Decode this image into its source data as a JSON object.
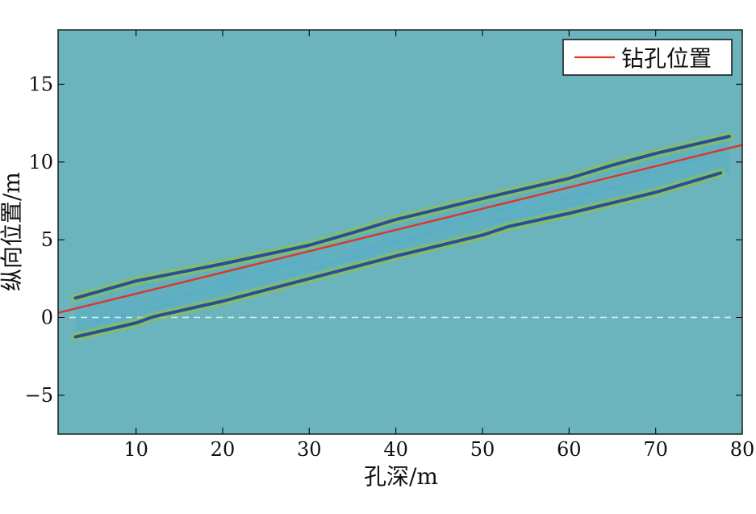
{
  "chart_data": {
    "type": "line",
    "title": "",
    "xlabel": "孔深/m",
    "ylabel": "纵向位置/m",
    "xlim": [
      1,
      80
    ],
    "ylim": [
      -7.5,
      18.5
    ],
    "x_ticks": [
      10,
      20,
      30,
      40,
      50,
      60,
      70,
      80
    ],
    "y_ticks": [
      -5,
      0,
      5,
      10,
      15
    ],
    "grid": false,
    "legend": {
      "position": "top-right",
      "entries": [
        "钻孔位置"
      ]
    },
    "colors": {
      "plot_background": "#6bb3bd",
      "borehole_line": "#d83a2b",
      "upper_boundary": "#2a4f9a",
      "lower_boundary": "#2a4f9a",
      "boundary_halo": "#8cc14f",
      "zero_reference": "#dff3f4",
      "inner_texture": "#2f9fdd"
    },
    "series": [
      {
        "name": "钻孔位置",
        "x": [
          1,
          80
        ],
        "y": [
          0.3,
          11.1
        ]
      },
      {
        "x": [
          3,
          10,
          20,
          30,
          35,
          40,
          50,
          60,
          65,
          70,
          78.5
        ],
        "y": [
          1.25,
          2.35,
          3.45,
          4.65,
          5.45,
          6.3,
          7.65,
          8.95,
          9.8,
          10.55,
          11.65
        ]
      },
      {
        "x": [
          3,
          10,
          12,
          20,
          30,
          40,
          50,
          53,
          60,
          70,
          77.5
        ],
        "y": [
          -1.25,
          -0.35,
          0.05,
          1.05,
          2.5,
          3.95,
          5.3,
          5.85,
          6.7,
          8.05,
          9.3
        ]
      }
    ],
    "annotations": [
      {
        "type": "horizontal_reference_line",
        "y": 0
      }
    ]
  }
}
